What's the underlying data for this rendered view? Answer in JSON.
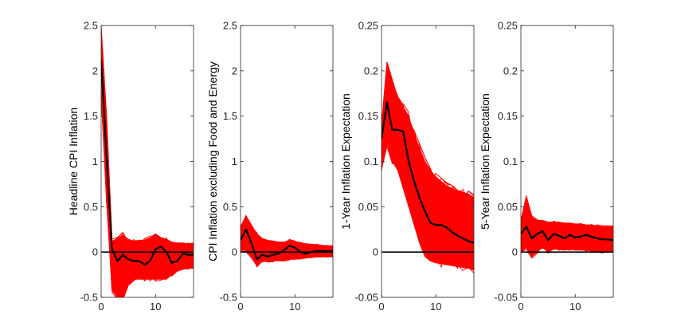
{
  "figure": {
    "background": "#ffffff",
    "band_color": "#ff0000",
    "line_color": "#000000",
    "axis_color": "#262626"
  },
  "chart_data": [
    {
      "type": "line",
      "ylabel": "Headline CPI Inflation",
      "xlim": [
        0,
        17
      ],
      "ylim": [
        -0.5,
        2.5
      ],
      "xticks": [
        0,
        10
      ],
      "xtick_labels": [
        "0",
        "10"
      ],
      "yticks": [
        -0.5,
        0,
        0.5,
        1,
        1.5,
        2,
        2.5
      ],
      "ytick_labels": [
        "-0.5",
        "0",
        "0.5",
        "1",
        "1.5",
        "2",
        "2.5"
      ],
      "zero_line": true,
      "series": [
        {
          "role": "median",
          "x": [
            0,
            1,
            2,
            3,
            4,
            5,
            6,
            7,
            8,
            9,
            10,
            11,
            12,
            13,
            14,
            15,
            16,
            17
          ],
          "values": [
            2.13,
            1.05,
            0.03,
            -0.1,
            -0.03,
            -0.08,
            -0.1,
            -0.1,
            -0.14,
            -0.1,
            0.03,
            0.06,
            0.0,
            -0.12,
            -0.1,
            -0.02,
            -0.03,
            -0.03
          ]
        },
        {
          "role": "upper",
          "x": [
            0,
            1,
            2,
            3,
            4,
            5,
            6,
            7,
            8,
            9,
            10,
            11,
            12,
            13,
            14,
            15,
            16,
            17
          ],
          "values": [
            2.5,
            1.5,
            0.12,
            0.15,
            0.19,
            0.14,
            0.12,
            0.13,
            0.13,
            0.16,
            0.2,
            0.16,
            0.14,
            0.11,
            0.1,
            0.1,
            0.09,
            0.1
          ]
        },
        {
          "role": "lower",
          "x": [
            0,
            1,
            2,
            3,
            4,
            5,
            6,
            7,
            8,
            9,
            10,
            11,
            12,
            13,
            14,
            15,
            16,
            17
          ],
          "values": [
            1.75,
            0.6,
            -0.42,
            -0.5,
            -0.5,
            -0.35,
            -0.3,
            -0.3,
            -0.3,
            -0.3,
            -0.3,
            -0.3,
            -0.3,
            -0.25,
            -0.2,
            -0.18,
            -0.18,
            -0.18
          ]
        }
      ]
    },
    {
      "type": "line",
      "ylabel": "CPI Inflation excluding Food and Energy",
      "xlim": [
        0,
        17
      ],
      "ylim": [
        -0.5,
        2.5
      ],
      "xticks": [
        0,
        10
      ],
      "xtick_labels": [
        "0",
        "10"
      ],
      "yticks": [
        -0.5,
        0,
        0.5,
        1,
        1.5,
        2,
        2.5
      ],
      "ytick_labels": [
        "-0.5",
        "0",
        "0.5",
        "1",
        "1.5",
        "2",
        "2.5"
      ],
      "zero_line": true,
      "series": [
        {
          "role": "median",
          "x": [
            0,
            1,
            2,
            3,
            4,
            5,
            6,
            7,
            8,
            9,
            10,
            11,
            12,
            13,
            14,
            15,
            16,
            17
          ],
          "values": [
            0.13,
            0.25,
            0.1,
            -0.08,
            -0.03,
            -0.05,
            -0.03,
            -0.02,
            0.02,
            0.07,
            0.05,
            0.0,
            -0.02,
            0.0,
            0.01,
            0.01,
            0.01,
            0.01
          ]
        },
        {
          "role": "upper",
          "x": [
            0,
            1,
            2,
            3,
            4,
            5,
            6,
            7,
            8,
            9,
            10,
            11,
            12,
            13,
            14,
            15,
            16,
            17
          ],
          "values": [
            0.28,
            0.4,
            0.3,
            0.2,
            0.15,
            0.13,
            0.12,
            0.11,
            0.11,
            0.13,
            0.12,
            0.1,
            0.09,
            0.08,
            0.08,
            0.07,
            0.07,
            0.07
          ]
        },
        {
          "role": "lower",
          "x": [
            0,
            1,
            2,
            3,
            4,
            5,
            6,
            7,
            8,
            9,
            10,
            11,
            12,
            13,
            14,
            15,
            16,
            17
          ],
          "values": [
            0.02,
            0.02,
            -0.05,
            -0.15,
            -0.1,
            -0.1,
            -0.1,
            -0.09,
            -0.09,
            -0.08,
            -0.08,
            -0.07,
            -0.06,
            -0.06,
            -0.05,
            -0.05,
            -0.05,
            -0.05
          ]
        }
      ]
    },
    {
      "type": "line",
      "ylabel": "1-Year Inflation Expectation",
      "xlim": [
        0,
        17
      ],
      "ylim": [
        -0.05,
        0.25
      ],
      "xticks": [
        0,
        10
      ],
      "xtick_labels": [
        "0",
        "10"
      ],
      "yticks": [
        -0.05,
        0,
        0.05,
        0.1,
        0.15,
        0.2,
        0.25
      ],
      "ytick_labels": [
        "-0.05",
        "0",
        "0.05",
        "0.1",
        "0.15",
        "0.2",
        "0.25"
      ],
      "zero_line": true,
      "series": [
        {
          "role": "median",
          "x": [
            0,
            1,
            2,
            3,
            4,
            5,
            6,
            7,
            8,
            9,
            10,
            11,
            12,
            13,
            14,
            15,
            16,
            17
          ],
          "values": [
            0.125,
            0.165,
            0.135,
            0.135,
            0.133,
            0.1,
            0.078,
            0.06,
            0.045,
            0.032,
            0.03,
            0.03,
            0.027,
            0.022,
            0.018,
            0.015,
            0.012,
            0.01
          ]
        },
        {
          "role": "upper",
          "x": [
            0,
            1,
            2,
            3,
            4,
            5,
            6,
            7,
            8,
            9,
            10,
            11,
            12,
            13,
            14,
            15,
            16,
            17
          ],
          "values": [
            0.14,
            0.21,
            0.19,
            0.17,
            0.16,
            0.15,
            0.13,
            0.115,
            0.1,
            0.09,
            0.083,
            0.078,
            0.073,
            0.07,
            0.068,
            0.066,
            0.064,
            0.06
          ]
        },
        {
          "role": "lower",
          "x": [
            0,
            1,
            2,
            3,
            4,
            5,
            6,
            7,
            8,
            9,
            10,
            11,
            12,
            13,
            14,
            15,
            16,
            17
          ],
          "values": [
            0.09,
            0.12,
            0.1,
            0.09,
            0.07,
            0.05,
            0.03,
            0.01,
            -0.005,
            -0.01,
            -0.012,
            -0.013,
            -0.014,
            -0.015,
            -0.016,
            -0.017,
            -0.018,
            -0.02
          ]
        }
      ]
    },
    {
      "type": "line",
      "ylabel": "5-Year Inflation Expectation",
      "xlim": [
        0,
        17
      ],
      "ylim": [
        -0.05,
        0.25
      ],
      "xticks": [
        0,
        10
      ],
      "xtick_labels": [
        "0",
        "10"
      ],
      "yticks": [
        -0.05,
        0,
        0.05,
        0.1,
        0.15,
        0.2,
        0.25
      ],
      "ytick_labels": [
        "-0.05",
        "0",
        "0.05",
        "0.1",
        "0.15",
        "0.2",
        "0.25"
      ],
      "zero_line": true,
      "series": [
        {
          "role": "median",
          "x": [
            0,
            1,
            2,
            3,
            4,
            5,
            6,
            7,
            8,
            9,
            10,
            11,
            12,
            13,
            14,
            15,
            16,
            17
          ],
          "values": [
            0.02,
            0.028,
            0.015,
            0.02,
            0.023,
            0.013,
            0.02,
            0.018,
            0.015,
            0.019,
            0.016,
            0.017,
            0.019,
            0.017,
            0.015,
            0.014,
            0.014,
            0.013
          ]
        },
        {
          "role": "upper",
          "x": [
            0,
            1,
            2,
            3,
            4,
            5,
            6,
            7,
            8,
            9,
            10,
            11,
            12,
            13,
            14,
            15,
            16,
            17
          ],
          "values": [
            0.035,
            0.06,
            0.04,
            0.035,
            0.035,
            0.033,
            0.033,
            0.033,
            0.032,
            0.032,
            0.031,
            0.031,
            0.03,
            0.03,
            0.029,
            0.028,
            0.028,
            0.028
          ]
        },
        {
          "role": "lower",
          "x": [
            0,
            1,
            2,
            3,
            4,
            5,
            6,
            7,
            8,
            9,
            10,
            11,
            12,
            13,
            14,
            15,
            16,
            17
          ],
          "values": [
            0.0,
            0.005,
            -0.005,
            0.0,
            0.005,
            0.0,
            0.003,
            0.003,
            0.002,
            0.003,
            0.002,
            0.002,
            0.002,
            0.001,
            0.001,
            0.0,
            0.0,
            0.0
          ]
        }
      ]
    }
  ]
}
